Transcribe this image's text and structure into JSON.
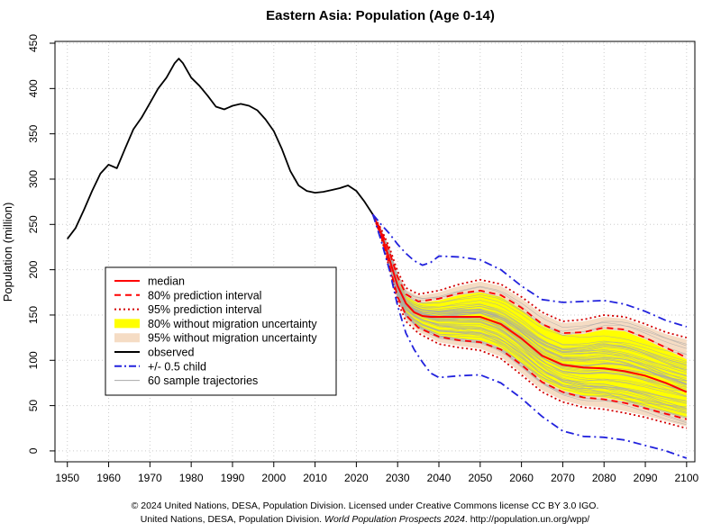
{
  "chart_data": {
    "type": "line",
    "title": "Eastern Asia: Population (Age 0-14)",
    "xlabel": "",
    "ylabel": "Population (million)",
    "xlim": [
      1947,
      2102
    ],
    "ylim": [
      -12,
      452
    ],
    "x_ticks": [
      1950,
      1960,
      1970,
      1980,
      1990,
      2000,
      2010,
      2020,
      2030,
      2040,
      2050,
      2060,
      2070,
      2080,
      2090,
      2100
    ],
    "y_ticks": [
      0,
      50,
      100,
      150,
      200,
      250,
      300,
      350,
      400,
      450
    ],
    "grid": true,
    "legend_position": "left",
    "colors": {
      "observed": "#000000",
      "median": "#ff0000",
      "pi80": "#ff0000",
      "pi95": "#d40000",
      "band80": "#ffff00",
      "band95": "#f5dcc4",
      "half_child": "#2222dd",
      "trajectory": "#a8a8a8"
    },
    "legend": [
      {
        "label": "median",
        "style": "solid-red"
      },
      {
        "label": "80% prediction interval",
        "style": "dash-red"
      },
      {
        "label": "95% prediction interval",
        "style": "dot-red"
      },
      {
        "label": "80% without migration uncertainty",
        "style": "band-yellow"
      },
      {
        "label": "95% without migration uncertainty",
        "style": "band-beige"
      },
      {
        "label": "observed",
        "style": "solid-black"
      },
      {
        "label": "+/- 0.5 child",
        "style": "dashdot-blue"
      },
      {
        "label": "60 sample trajectories",
        "style": "thin-gray"
      }
    ],
    "series": [
      {
        "name": "observed",
        "x": [
          1950,
          1952,
          1954,
          1956,
          1958,
          1960,
          1962,
          1964,
          1966,
          1968,
          1970,
          1972,
          1974,
          1976,
          1977,
          1978,
          1980,
          1982,
          1984,
          1986,
          1988,
          1990,
          1992,
          1994,
          1996,
          1998,
          2000,
          2002,
          2004,
          2006,
          2008,
          2010,
          2012,
          2014,
          2016,
          2018,
          2020,
          2022,
          2024
        ],
        "y": [
          234,
          246,
          266,
          287,
          306,
          316,
          312,
          334,
          355,
          368,
          384,
          400,
          412,
          428,
          433,
          428,
          412,
          403,
          392,
          380,
          377,
          381,
          383,
          381,
          376,
          366,
          353,
          333,
          309,
          293,
          287,
          285,
          286,
          288,
          290,
          293,
          287,
          275,
          261
        ]
      },
      {
        "name": "median",
        "x": [
          2024,
          2026,
          2028,
          2030,
          2032,
          2034,
          2036,
          2038,
          2040,
          2045,
          2050,
          2055,
          2060,
          2065,
          2070,
          2075,
          2080,
          2085,
          2090,
          2095,
          2100
        ],
        "y": [
          261,
          240,
          212,
          182,
          163,
          153,
          149,
          148,
          148,
          148,
          148,
          140,
          124,
          105,
          95,
          92,
          91,
          88,
          83,
          75,
          65
        ]
      },
      {
        "name": "80% prediction interval upper",
        "x": [
          2024,
          2026,
          2028,
          2030,
          2032,
          2035,
          2040,
          2045,
          2050,
          2055,
          2060,
          2065,
          2070,
          2075,
          2080,
          2085,
          2090,
          2095,
          2100
        ],
        "y": [
          261,
          243,
          220,
          192,
          173,
          165,
          168,
          174,
          177,
          172,
          158,
          140,
          130,
          131,
          136,
          134,
          125,
          114,
          103
        ]
      },
      {
        "name": "80% prediction interval lower",
        "x": [
          2024,
          2026,
          2028,
          2030,
          2032,
          2035,
          2040,
          2045,
          2050,
          2055,
          2060,
          2065,
          2070,
          2075,
          2080,
          2085,
          2090,
          2095,
          2100
        ],
        "y": [
          261,
          237,
          205,
          170,
          150,
          136,
          126,
          122,
          120,
          112,
          95,
          76,
          65,
          59,
          57,
          53,
          47,
          41,
          35
        ]
      },
      {
        "name": "95% prediction interval upper",
        "x": [
          2024,
          2026,
          2028,
          2030,
          2032,
          2035,
          2040,
          2045,
          2050,
          2055,
          2060,
          2065,
          2070,
          2075,
          2080,
          2085,
          2090,
          2095,
          2100
        ],
        "y": [
          261,
          245,
          225,
          198,
          180,
          173,
          177,
          184,
          189,
          184,
          170,
          153,
          143,
          145,
          150,
          148,
          140,
          131,
          125
        ]
      },
      {
        "name": "95% prediction interval lower",
        "x": [
          2024,
          2026,
          2028,
          2030,
          2032,
          2035,
          2040,
          2045,
          2050,
          2055,
          2060,
          2065,
          2070,
          2075,
          2080,
          2085,
          2090,
          2095,
          2100
        ],
        "y": [
          261,
          236,
          202,
          165,
          143,
          130,
          118,
          114,
          111,
          102,
          84,
          65,
          54,
          48,
          46,
          42,
          37,
          31,
          25
        ]
      },
      {
        "name": "+/- 0.5 child upper",
        "x": [
          2024,
          2026,
          2028,
          2030,
          2032,
          2034,
          2036,
          2038,
          2040,
          2045,
          2050,
          2055,
          2060,
          2065,
          2070,
          2075,
          2080,
          2085,
          2090,
          2095,
          2100
        ],
        "y": [
          261,
          250,
          240,
          228,
          218,
          210,
          205,
          208,
          215,
          214,
          211,
          200,
          182,
          167,
          164,
          165,
          166,
          162,
          154,
          144,
          137
        ]
      },
      {
        "name": "+/- 0.5 child lower",
        "x": [
          2024,
          2026,
          2028,
          2030,
          2032,
          2034,
          2036,
          2038,
          2040,
          2045,
          2050,
          2055,
          2060,
          2065,
          2070,
          2075,
          2080,
          2085,
          2090,
          2095,
          2100
        ],
        "y": [
          261,
          232,
          200,
          160,
          130,
          112,
          98,
          86,
          81,
          83,
          84,
          75,
          58,
          38,
          22,
          16,
          15,
          12,
          6,
          0,
          -8
        ]
      }
    ],
    "band80_no_migration": {
      "x": [
        2024,
        2026,
        2028,
        2030,
        2032,
        2035,
        2040,
        2045,
        2050,
        2055,
        2060,
        2065,
        2070,
        2075,
        2080,
        2085,
        2090,
        2095,
        2100
      ],
      "upper": [
        261,
        242,
        218,
        190,
        171,
        163,
        166,
        172,
        175,
        170,
        156,
        138,
        128,
        129,
        134,
        132,
        123,
        112,
        101
      ],
      "lower": [
        261,
        238,
        207,
        172,
        152,
        138,
        128,
        124,
        122,
        114,
        97,
        78,
        67,
        61,
        59,
        55,
        49,
        43,
        37
      ]
    },
    "band95_no_migration": {
      "x": [
        2024,
        2026,
        2028,
        2030,
        2032,
        2035,
        2040,
        2045,
        2050,
        2055,
        2060,
        2065,
        2070,
        2075,
        2080,
        2085,
        2090,
        2095,
        2100
      ],
      "upper": [
        261,
        244,
        224,
        196,
        178,
        171,
        175,
        182,
        187,
        182,
        168,
        151,
        141,
        143,
        148,
        146,
        138,
        129,
        123
      ],
      "lower": [
        261,
        236,
        203,
        166,
        145,
        132,
        120,
        116,
        113,
        104,
        86,
        67,
        56,
        50,
        48,
        44,
        39,
        33,
        27
      ]
    },
    "sample_trajectory_count": 60
  },
  "footer": {
    "line1": "© 2024 United Nations, DESA, Population Division. Licensed under Creative Commons license CC BY 3.0 IGO.",
    "line2_prefix": "United Nations, DESA, Population Division. ",
    "line2_italic": "World Population Prospects 2024",
    "line2_suffix": ". http://population.un.org/wpp/"
  }
}
